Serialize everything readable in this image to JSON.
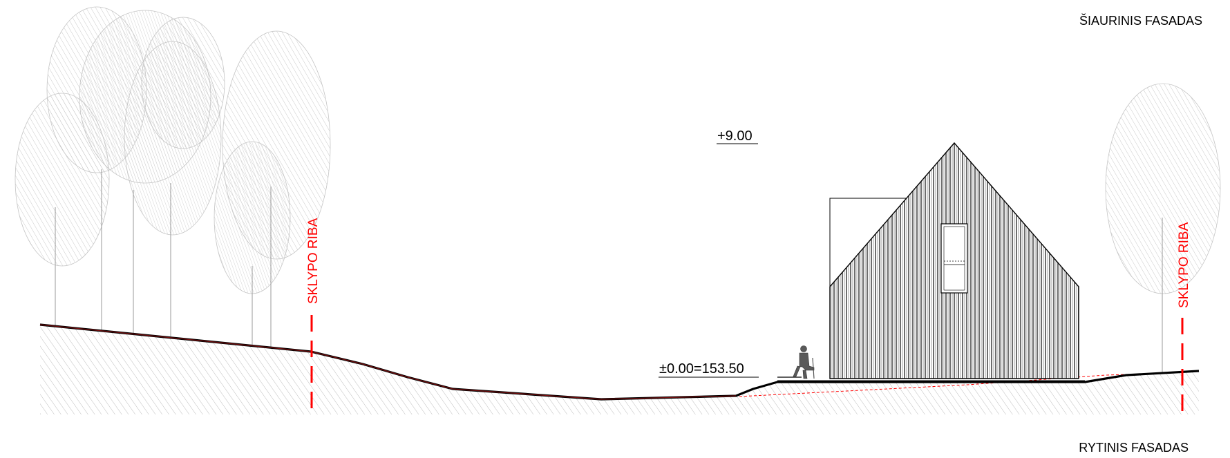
{
  "titles": {
    "north_facade": "ŠIAURINIS FASADAS",
    "east_facade": "RYTINIS FASADAS"
  },
  "levels": {
    "top": "+9.00",
    "ground": "±0.00=153.50"
  },
  "boundaries": {
    "left": "SKLYPO RIBA",
    "right": "SKLYPO RIBA"
  },
  "colors": {
    "boundary": "#ff0000",
    "terrain_line": "#000000",
    "terrain_inner": "#7a1010",
    "hatch": "#b8b8b8",
    "cladding": "#555555"
  },
  "icons": {
    "person": "seated-person-icon"
  }
}
